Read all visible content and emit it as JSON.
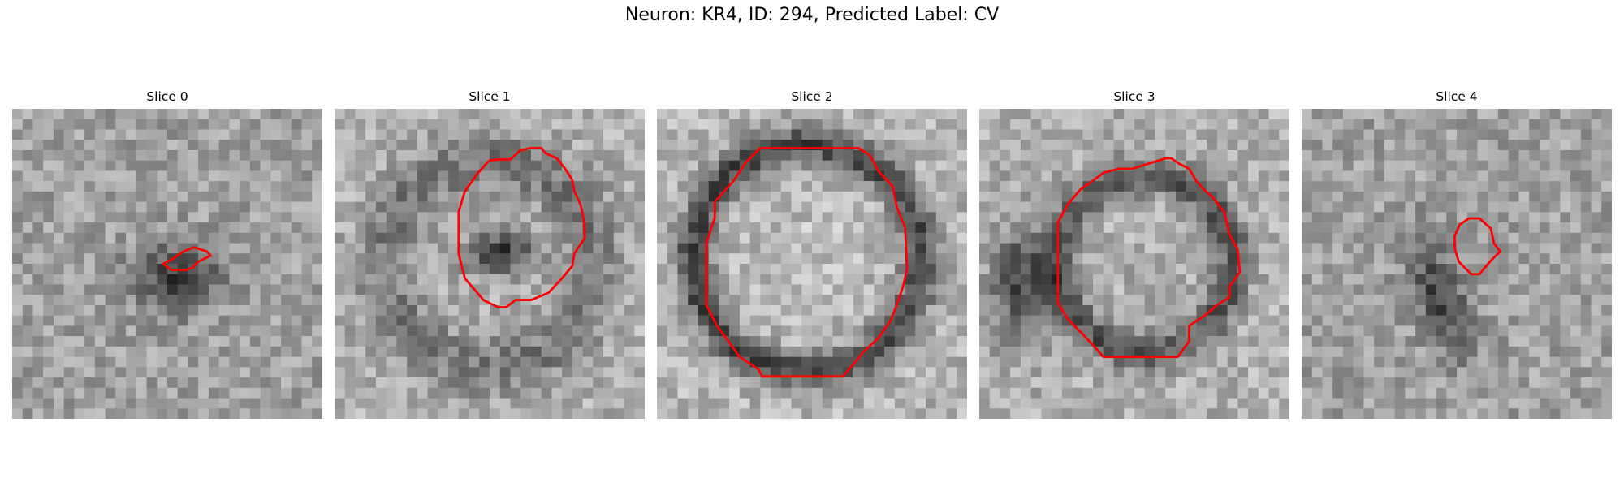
{
  "title": "Neuron: KR4, ID: 294, Predicted Label: CV",
  "panels": [
    {
      "label": "Slice 0",
      "blob": "small dark patch at center",
      "contour_color": "#ff0000"
    },
    {
      "label": "Slice 1",
      "blob": "ring-like structure with dark interior",
      "contour_color": "#ff0000"
    },
    {
      "label": "Slice 2",
      "blob": "large ring with bright interior",
      "contour_color": "#ff0000"
    },
    {
      "label": "Slice 3",
      "blob": "ring with dark left shadow",
      "contour_color": "#ff0000"
    },
    {
      "label": "Slice 4",
      "blob": "small contour upper right of dark streak",
      "contour_color": "#ff0000"
    }
  ],
  "colors": {
    "contour": "#ff0000",
    "background": "#ffffff"
  }
}
